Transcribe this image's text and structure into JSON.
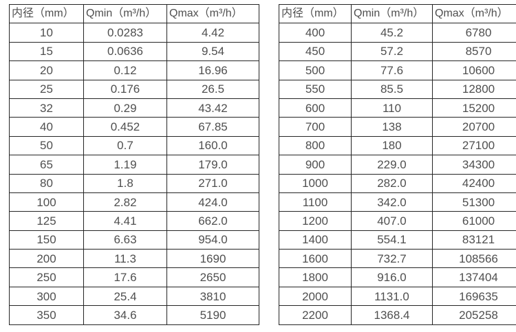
{
  "page": {
    "background_color": "#ffffff",
    "text_color": "#4f4f4f",
    "border_color": "#242424"
  },
  "tables": [
    {
      "name": "flow-table-small-diameters",
      "headers": [
        "内径（mm）",
        "Qmin（m³/h）",
        "Qmax（m³/h）"
      ],
      "rows": [
        [
          "10",
          "0.0283",
          "4.42"
        ],
        [
          "15",
          "0.0636",
          "9.54"
        ],
        [
          "20",
          "0.12",
          "16.96"
        ],
        [
          "25",
          "0.176",
          "26.5"
        ],
        [
          "32",
          "0.29",
          "43.42"
        ],
        [
          "40",
          "0.452",
          "67.85"
        ],
        [
          "50",
          "0.7",
          "160.0"
        ],
        [
          "65",
          "1.19",
          "179.0"
        ],
        [
          "80",
          "1.8",
          "271.0"
        ],
        [
          "100",
          "2.82",
          "424.0"
        ],
        [
          "125",
          "4.41",
          "662.0"
        ],
        [
          "150",
          "6.63",
          "954.0"
        ],
        [
          "200",
          "11.3",
          "1690"
        ],
        [
          "250",
          "17.6",
          "2650"
        ],
        [
          "300",
          "25.4",
          "3810"
        ],
        [
          "350",
          "34.6",
          "5190"
        ]
      ]
    },
    {
      "name": "flow-table-large-diameters",
      "headers": [
        "内径（mm）",
        "Qmin（m³/h）",
        "Qmax（m³/h）"
      ],
      "rows": [
        [
          "400",
          "45.2",
          "6780"
        ],
        [
          "450",
          "57.2",
          "8570"
        ],
        [
          "500",
          "77.6",
          "10600"
        ],
        [
          "550",
          "85.5",
          "12800"
        ],
        [
          "600",
          "110",
          "15200"
        ],
        [
          "700",
          "138",
          "20700"
        ],
        [
          "800",
          "180",
          "27100"
        ],
        [
          "900",
          "229.0",
          "34300"
        ],
        [
          "1000",
          "282.0",
          "42400"
        ],
        [
          "1100",
          "342.0",
          "51300"
        ],
        [
          "1200",
          "407.0",
          "61000"
        ],
        [
          "1400",
          "554.1",
          "83121"
        ],
        [
          "1600",
          "732.7",
          "108566"
        ],
        [
          "1800",
          "916.0",
          "137404"
        ],
        [
          "2000",
          "1131.0",
          "169635"
        ],
        [
          "2200",
          "1368.4",
          "205258"
        ]
      ]
    }
  ],
  "chart_data": [
    {
      "type": "table",
      "title": "",
      "columns": [
        "内径（mm）",
        "Qmin（m³/h）",
        "Qmax（m³/h）"
      ],
      "rows": [
        [
          10,
          0.0283,
          4.42
        ],
        [
          15,
          0.0636,
          9.54
        ],
        [
          20,
          0.12,
          16.96
        ],
        [
          25,
          0.176,
          26.5
        ],
        [
          32,
          0.29,
          43.42
        ],
        [
          40,
          0.452,
          67.85
        ],
        [
          50,
          0.7,
          160.0
        ],
        [
          65,
          1.19,
          179.0
        ],
        [
          80,
          1.8,
          271.0
        ],
        [
          100,
          2.82,
          424.0
        ],
        [
          125,
          4.41,
          662.0
        ],
        [
          150,
          6.63,
          954.0
        ],
        [
          200,
          11.3,
          1690
        ],
        [
          250,
          17.6,
          2650
        ],
        [
          300,
          25.4,
          3810
        ],
        [
          350,
          34.6,
          5190
        ]
      ]
    },
    {
      "type": "table",
      "title": "",
      "columns": [
        "内径（mm）",
        "Qmin（m³/h）",
        "Qmax（m³/h）"
      ],
      "rows": [
        [
          400,
          45.2,
          6780
        ],
        [
          450,
          57.2,
          8570
        ],
        [
          500,
          77.6,
          10600
        ],
        [
          550,
          85.5,
          12800
        ],
        [
          600,
          110,
          15200
        ],
        [
          700,
          138,
          20700
        ],
        [
          800,
          180,
          27100
        ],
        [
          900,
          229.0,
          34300
        ],
        [
          1000,
          282.0,
          42400
        ],
        [
          1100,
          342.0,
          51300
        ],
        [
          1200,
          407.0,
          61000
        ],
        [
          1400,
          554.1,
          83121
        ],
        [
          1600,
          732.7,
          108566
        ],
        [
          1800,
          916.0,
          137404
        ],
        [
          2000,
          1131.0,
          169635
        ],
        [
          2200,
          1368.4,
          205258
        ]
      ]
    }
  ]
}
